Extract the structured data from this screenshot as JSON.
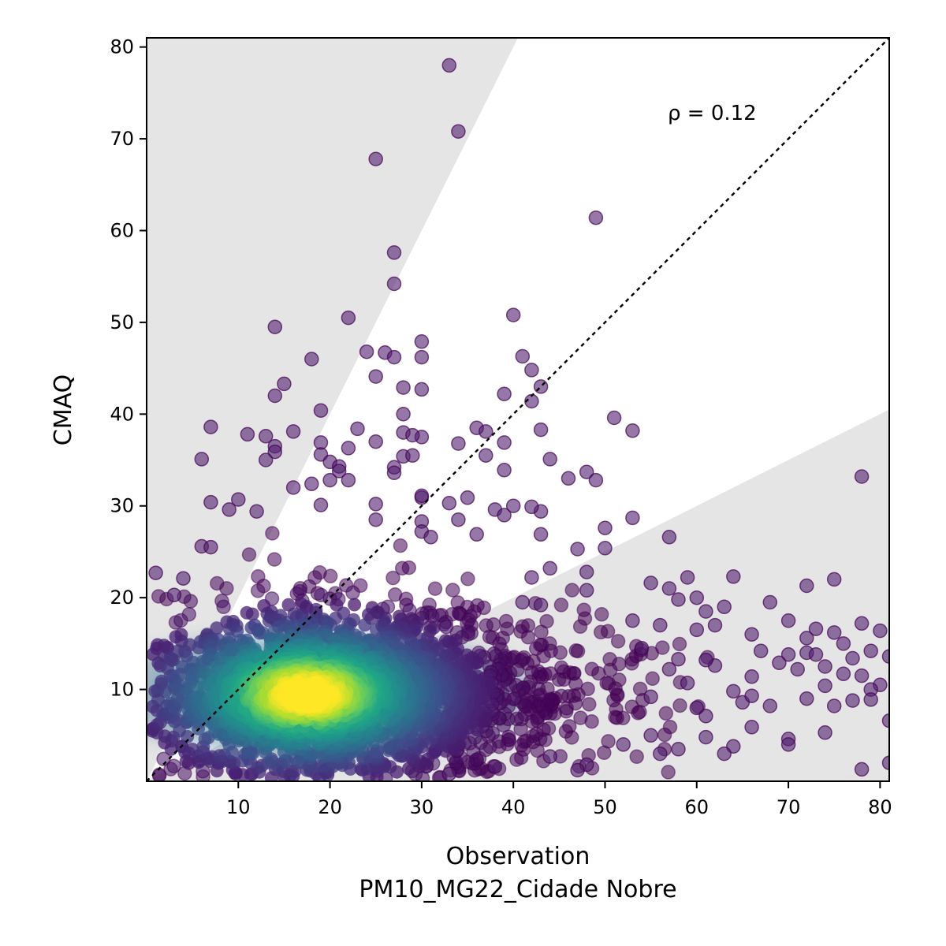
{
  "chart_data": {
    "type": "scatter",
    "xlabel": "Observation",
    "xlabel_sub": "PM10_MG22_Cidade Nobre",
    "ylabel": "CMAQ",
    "annotation": "ρ = 0.12",
    "xlim": [
      0,
      81
    ],
    "ylim": [
      0,
      81
    ],
    "xticks": [
      10,
      20,
      30,
      40,
      50,
      60,
      70,
      80
    ],
    "yticks": [
      10,
      20,
      30,
      40,
      50,
      60,
      70,
      80
    ],
    "identity_line": true,
    "shaded_band": {
      "upper_slope": 2.0,
      "lower_slope": 0.5,
      "color": "#e5e5e5"
    },
    "colormap": "viridis",
    "density_peak": [
      17.5,
      9.5
    ],
    "outliers": [
      [
        33,
        78
      ],
      [
        34,
        70.8
      ],
      [
        25,
        67.8
      ],
      [
        49,
        61.4
      ],
      [
        27,
        57.6
      ],
      [
        27,
        54.2
      ],
      [
        40,
        50.8
      ],
      [
        22,
        50.5
      ],
      [
        14,
        49.5
      ],
      [
        24,
        46.8
      ],
      [
        26,
        46.7
      ],
      [
        27,
        46.2
      ],
      [
        30,
        47.9
      ],
      [
        30,
        46.2
      ],
      [
        41,
        46.3
      ],
      [
        18,
        46
      ],
      [
        25,
        44.1
      ],
      [
        15,
        43.3
      ],
      [
        42,
        44.8
      ],
      [
        43,
        43
      ],
      [
        28,
        42.9
      ],
      [
        30,
        42.7
      ],
      [
        39,
        42.2
      ],
      [
        14,
        42
      ],
      [
        42,
        41.4
      ],
      [
        19,
        40.4
      ],
      [
        28,
        40
      ],
      [
        51,
        39.6
      ],
      [
        7,
        38.6
      ],
      [
        11,
        37.8
      ],
      [
        13,
        37.6
      ],
      [
        16,
        38.1
      ],
      [
        23,
        38.4
      ],
      [
        25,
        37
      ],
      [
        28,
        38
      ],
      [
        30,
        37.5
      ],
      [
        36,
        38.5
      ],
      [
        37,
        38.1
      ],
      [
        43,
        38.3
      ],
      [
        53,
        38.2
      ],
      [
        14,
        36.5
      ],
      [
        14,
        35.9
      ],
      [
        19,
        36.9
      ],
      [
        22,
        36.3
      ],
      [
        29,
        37.7
      ],
      [
        34,
        36.8
      ],
      [
        39,
        36.9
      ],
      [
        6,
        35.1
      ],
      [
        13,
        35
      ],
      [
        19,
        35.6
      ],
      [
        20,
        34.8
      ],
      [
        21,
        34.3
      ],
      [
        27,
        34.2
      ],
      [
        28,
        35.4
      ],
      [
        37,
        35.5
      ],
      [
        44,
        35.1
      ],
      [
        29,
        35.5
      ],
      [
        21,
        33.8
      ],
      [
        27,
        33.6
      ],
      [
        39,
        33.9
      ],
      [
        48,
        33.7
      ],
      [
        49,
        32.8
      ],
      [
        78,
        33.2
      ],
      [
        20,
        32.8
      ],
      [
        22,
        32.8
      ],
      [
        18,
        32.4
      ],
      [
        16,
        32
      ],
      [
        46,
        33
      ],
      [
        33,
        30.3
      ],
      [
        35,
        30.9
      ],
      [
        40,
        30
      ],
      [
        30,
        30.9
      ],
      [
        30,
        31.1
      ],
      [
        10,
        30.7
      ],
      [
        7,
        30.4
      ],
      [
        19,
        30.1
      ],
      [
        25,
        30.2
      ],
      [
        38,
        29.6
      ],
      [
        43,
        29.4
      ],
      [
        9,
        29.6
      ],
      [
        42,
        29.9
      ],
      [
        39,
        29
      ],
      [
        12,
        29.4
      ],
      [
        34,
        28.5
      ],
      [
        53,
        28.7
      ],
      [
        25,
        28.5
      ],
      [
        50,
        27.6
      ],
      [
        57,
        26.6
      ],
      [
        30,
        28.3
      ],
      [
        30,
        27.2
      ],
      [
        43,
        26.9
      ],
      [
        31,
        26.6
      ],
      [
        47,
        25.3
      ],
      [
        50,
        25.4
      ],
      [
        36,
        26.9
      ],
      [
        6,
        25.6
      ],
      [
        7,
        25.5
      ],
      [
        1,
        22.7
      ],
      [
        3,
        20.3
      ],
      [
        4,
        22.1
      ],
      [
        42,
        22.2
      ],
      [
        44,
        23.2
      ],
      [
        48,
        22.8
      ],
      [
        59,
        22.2
      ],
      [
        64,
        22.3
      ],
      [
        72,
        21.3
      ],
      [
        75,
        22
      ],
      [
        55,
        21.6
      ],
      [
        57,
        21
      ],
      [
        60,
        20
      ],
      [
        48,
        20.8
      ],
      [
        41,
        19.5
      ],
      [
        43,
        19.2
      ],
      [
        61,
        18.5
      ],
      [
        68,
        19.5
      ],
      [
        58,
        19.8
      ],
      [
        63,
        19
      ],
      [
        53,
        17.5
      ],
      [
        56,
        17
      ],
      [
        60,
        16.5
      ],
      [
        62,
        17
      ],
      [
        66,
        16
      ],
      [
        70,
        17.5
      ],
      [
        73,
        16.6
      ],
      [
        75,
        16.2
      ],
      [
        78,
        17.2
      ],
      [
        80,
        16.4
      ],
      [
        76,
        15
      ],
      [
        72,
        15.6
      ],
      [
        67,
        14.2
      ],
      [
        70,
        13.8
      ],
      [
        72,
        14
      ],
      [
        73,
        13.8
      ],
      [
        77,
        13.4
      ],
      [
        79,
        14.2
      ],
      [
        81,
        13.6
      ],
      [
        71,
        12.2
      ],
      [
        74,
        12.5
      ],
      [
        76,
        11.7
      ],
      [
        78,
        11.5
      ],
      [
        80,
        10.5
      ],
      [
        79,
        10
      ],
      [
        74,
        10.4
      ],
      [
        72,
        9
      ],
      [
        75,
        8.2
      ],
      [
        77,
        8.8
      ],
      [
        79,
        8.9
      ],
      [
        81,
        6.6
      ],
      [
        78,
        1.3
      ],
      [
        81,
        2
      ],
      [
        74,
        5.3
      ],
      [
        70,
        4.6
      ],
      [
        70,
        4
      ],
      [
        66,
        5.9
      ],
      [
        64,
        3.8
      ],
      [
        63,
        3
      ],
      [
        61,
        4.8
      ],
      [
        60,
        8
      ],
      [
        61,
        7.1
      ],
      [
        58,
        3.5
      ],
      [
        56,
        3
      ],
      [
        55,
        5
      ],
      [
        52,
        4
      ],
      [
        48,
        1.8
      ],
      [
        47,
        1.2
      ],
      [
        44,
        2.7
      ],
      [
        38,
        1.6
      ],
      [
        33,
        0.8
      ],
      [
        65,
        8.6
      ],
      [
        68,
        8.2
      ],
      [
        66,
        9.3
      ],
      [
        64,
        9.8
      ],
      [
        62,
        12.6
      ],
      [
        58,
        13.3
      ],
      [
        54,
        14.5
      ],
      [
        59,
        10.7
      ],
      [
        61,
        13.2
      ],
      [
        57,
        12.2
      ],
      [
        55,
        9.2
      ],
      [
        66,
        11.4
      ],
      [
        69,
        12.9
      ]
    ]
  }
}
